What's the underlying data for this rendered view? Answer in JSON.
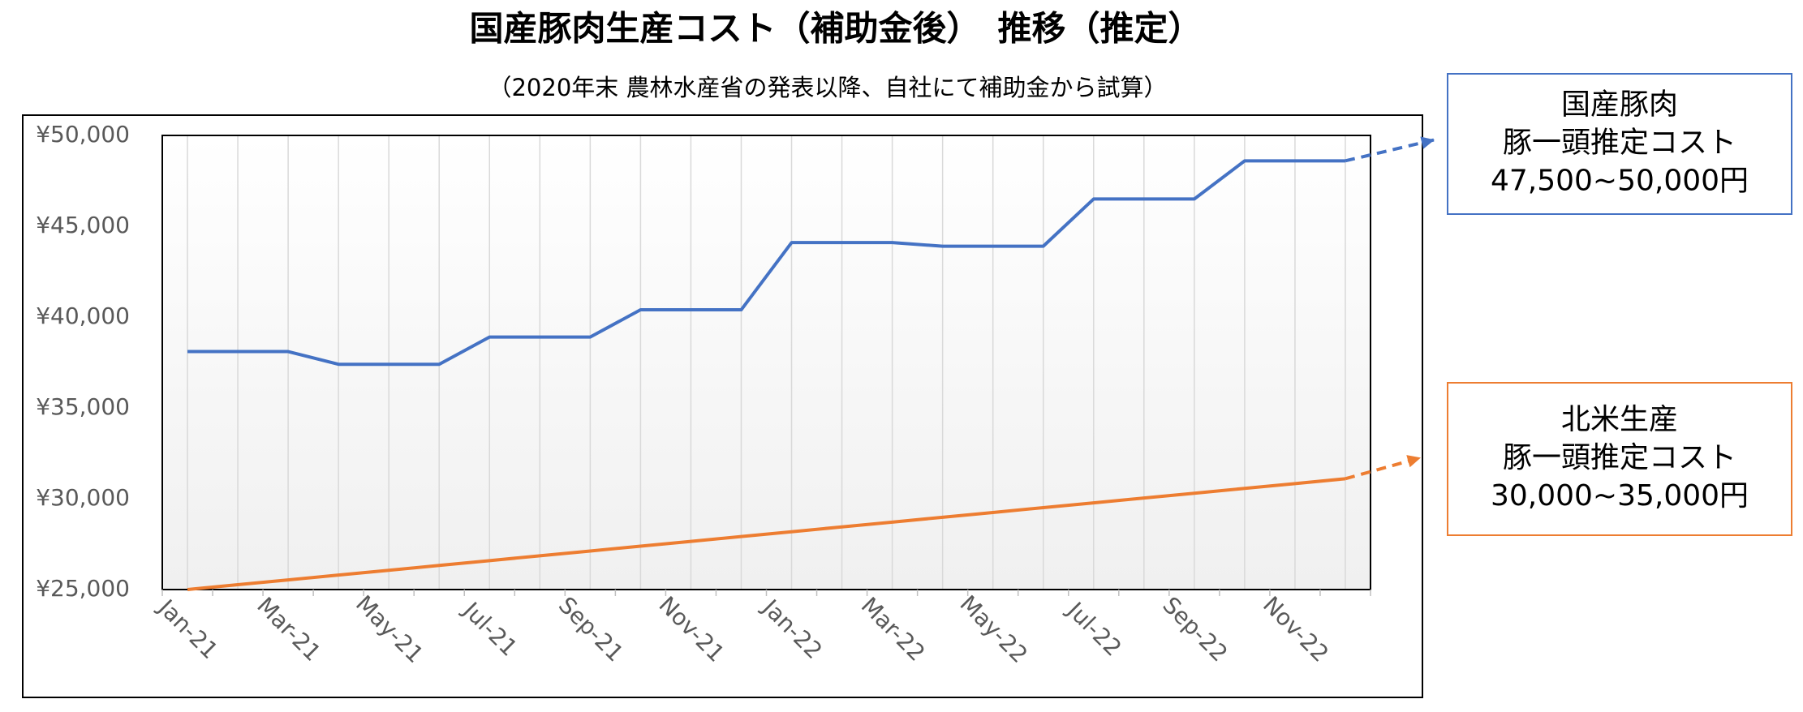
{
  "chart_data": {
    "type": "line",
    "title": "国産豚肉生産コスト（補助金後）　推移（推定）",
    "subtitle": "（2020年末  農林水産省の発表以降、自社にて補助金から試算）",
    "categories": [
      "Jan-21",
      null,
      "Mar-21",
      null,
      "May-21",
      null,
      "Jul-21",
      null,
      "Sep-21",
      null,
      "Nov-21",
      null,
      "Jan-22",
      null,
      "Mar-22",
      null,
      "May-22",
      null,
      "Jul-22",
      null,
      "Sep-22",
      null,
      "Nov-22",
      null
    ],
    "series": [
      {
        "color": "#4472c4",
        "values": [
          38100,
          38100,
          38100,
          37400,
          37400,
          37400,
          38900,
          38900,
          38900,
          40400,
          40400,
          40400,
          44100,
          44100,
          44100,
          43900,
          43900,
          43900,
          46500,
          46500,
          46500,
          48600,
          48600,
          48600
        ]
      },
      {
        "color": "#ed7d31",
        "values": [
          25000,
          25270,
          25530,
          25800,
          26060,
          26330,
          26590,
          26860,
          27120,
          27390,
          27650,
          27920,
          28180,
          28450,
          28710,
          28980,
          29240,
          29510,
          29770,
          30040,
          30300,
          30570,
          30830,
          31100
        ]
      }
    ],
    "ylim": [
      25000,
      50000
    ],
    "yticks": [
      {
        "value": 25000,
        "label": "¥25,000"
      },
      {
        "value": 30000,
        "label": "¥30,000"
      },
      {
        "value": 35000,
        "label": "¥35,000"
      },
      {
        "value": 40000,
        "label": "¥40,000"
      },
      {
        "value": 45000,
        "label": "¥45,000"
      },
      {
        "value": 50000,
        "label": "¥50,000"
      }
    ],
    "grid": true,
    "annotations": [
      {
        "lines": [
          "国産豚肉",
          "豚一頭推定コスト",
          "47,500~50,000円"
        ]
      },
      {
        "lines": [
          "北米生産",
          "豚一頭推定コスト",
          "30,000~35,000円"
        ]
      }
    ]
  }
}
